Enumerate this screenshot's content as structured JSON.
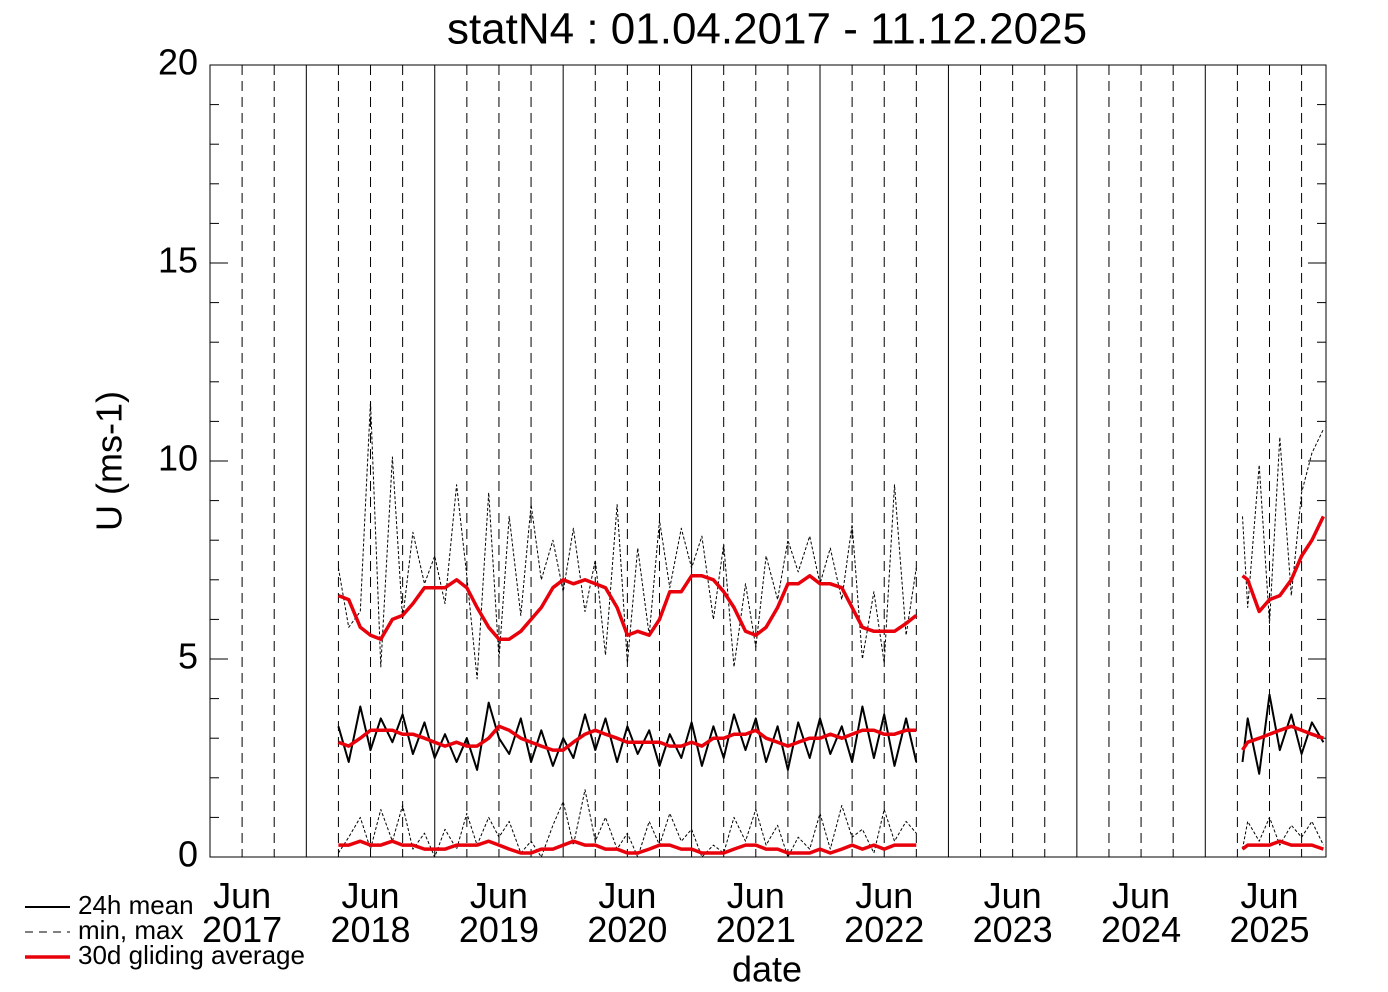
{
  "chart_data": {
    "type": "line",
    "title": "statN4 : 01.04.2017 - 11.12.2025",
    "xlabel": "date",
    "ylabel": "U (ms-1)",
    "xlim": [
      2017.25,
      2025.94
    ],
    "ylim": [
      0,
      20
    ],
    "yticks": [
      0,
      5,
      10,
      15,
      20
    ],
    "y_minor_ticks": [
      1,
      2,
      3,
      4,
      6,
      7,
      8,
      9,
      11,
      12,
      13,
      14,
      16,
      17,
      18,
      19
    ],
    "xticks": [
      {
        "value": 2017.5,
        "label": "Jun\n2017"
      },
      {
        "value": 2018.5,
        "label": "Jun\n2018"
      },
      {
        "value": 2019.5,
        "label": "Jun\n2019"
      },
      {
        "value": 2020.5,
        "label": "Jun\n2020"
      },
      {
        "value": 2021.5,
        "label": "Jun\n2021"
      },
      {
        "value": 2022.5,
        "label": "Jun\n2022"
      },
      {
        "value": 2023.5,
        "label": "Jun\n2023"
      },
      {
        "value": 2024.5,
        "label": "Jun\n2024"
      },
      {
        "value": 2025.5,
        "label": "Jun\n2025"
      }
    ],
    "xgrid_solid": [
      2018,
      2019,
      2020,
      2021,
      2022,
      2023,
      2024,
      2025
    ],
    "xgrid_dashed": [
      2017.75,
      2018.25,
      2018.75,
      2019.25,
      2019.75,
      2020.25,
      2020.75,
      2021.25,
      2021.75,
      2022.25,
      2022.75,
      2023.25,
      2023.75,
      2024.25,
      2024.75,
      2025.25,
      2025.75
    ],
    "x": [
      2018.25,
      2018.33,
      2018.42,
      2018.5,
      2018.58,
      2018.67,
      2018.75,
      2018.83,
      2018.92,
      2019.0,
      2019.08,
      2019.17,
      2019.25,
      2019.33,
      2019.42,
      2019.5,
      2019.58,
      2019.67,
      2019.75,
      2019.83,
      2019.92,
      2020.0,
      2020.08,
      2020.17,
      2020.25,
      2020.33,
      2020.42,
      2020.5,
      2020.58,
      2020.67,
      2020.75,
      2020.83,
      2020.92,
      2021.0,
      2021.08,
      2021.17,
      2021.25,
      2021.33,
      2021.42,
      2021.5,
      2021.58,
      2021.67,
      2021.75,
      2021.83,
      2021.92,
      2022.0,
      2022.08,
      2022.17,
      2022.25,
      2022.33,
      2022.42,
      2022.5,
      2022.58,
      2022.67,
      2022.75,
      2024.0,
      2025.29,
      2025.33,
      2025.42,
      2025.5,
      2025.58,
      2025.67,
      2025.75,
      2025.83,
      2025.92
    ],
    "series": [
      {
        "name": "min, max",
        "color": "#000000",
        "style": "dashed",
        "values": [
          [
            7.3,
            5.8,
            6.2,
            11.5,
            4.8,
            10.1,
            6.0,
            8.2,
            6.9,
            7.6,
            6.4,
            9.4,
            7.1,
            4.5,
            9.2,
            5.0,
            8.6,
            6.1,
            8.9,
            7.0,
            8.0,
            6.7,
            8.3,
            6.2,
            7.5,
            5.1,
            8.9,
            4.9,
            7.8,
            5.6,
            8.5,
            6.8,
            8.3,
            7.3,
            8.1,
            6.0,
            7.9,
            4.8,
            6.9,
            5.3,
            7.6,
            6.5,
            8.0,
            7.2,
            8.1,
            6.9,
            7.8,
            6.5,
            8.4,
            5.0,
            6.7,
            4.9,
            9.4,
            5.6,
            7.3,
            null,
            8.6,
            6.3,
            9.9,
            5.9,
            10.6,
            6.6,
            9.2,
            10.2,
            10.8
          ],
          [
            0.1,
            0.5,
            1.0,
            0.2,
            1.2,
            0.4,
            1.3,
            0.2,
            0.6,
            0.0,
            0.7,
            0.2,
            1.1,
            0.3,
            1.0,
            0.5,
            0.9,
            0.1,
            0.4,
            0.0,
            0.8,
            1.4,
            0.3,
            1.7,
            0.4,
            1.0,
            0.2,
            0.6,
            0.0,
            0.9,
            0.3,
            1.1,
            0.4,
            0.7,
            0.0,
            0.3,
            0.1,
            1.0,
            0.4,
            1.2,
            0.3,
            0.8,
            0.0,
            0.5,
            0.2,
            1.1,
            0.2,
            1.3,
            0.5,
            0.7,
            0.1,
            1.2,
            0.4,
            0.9,
            0.6,
            null,
            0.2,
            0.9,
            0.4,
            1.0,
            0.3,
            0.8,
            0.5,
            0.9,
            0.3
          ]
        ]
      },
      {
        "name": "24h mean",
        "color": "#000000",
        "style": "solid",
        "values": [
          [
            3.3,
            2.4,
            3.8,
            2.7,
            3.5,
            2.9,
            3.6,
            2.6,
            3.4,
            2.5,
            3.1,
            2.4,
            3.0,
            2.2,
            3.9,
            3.0,
            2.6,
            3.5,
            2.4,
            3.2,
            2.3,
            3.0,
            2.5,
            3.6,
            2.7,
            3.5,
            2.4,
            3.3,
            2.6,
            3.2,
            2.3,
            3.1,
            2.5,
            3.4,
            2.3,
            3.3,
            2.5,
            3.6,
            2.7,
            3.5,
            2.4,
            3.3,
            2.2,
            3.4,
            2.5,
            3.5,
            2.6,
            3.3,
            2.4,
            3.8,
            2.5,
            3.6,
            2.3,
            3.5,
            2.4,
            null,
            2.4,
            3.5,
            2.1,
            4.1,
            2.7,
            3.6,
            2.6,
            3.4,
            2.9
          ]
        ]
      },
      {
        "name": "30d gliding average",
        "color": "#e8000b",
        "style": "thick",
        "values": [
          [
            6.6,
            6.5,
            5.8,
            5.6,
            5.5,
            6.0,
            6.1,
            6.4,
            6.8,
            6.8,
            6.8,
            7.0,
            6.8,
            6.3,
            5.8,
            5.5,
            5.5,
            5.7,
            6.0,
            6.3,
            6.8,
            7.0,
            6.9,
            7.0,
            6.9,
            6.8,
            6.3,
            5.6,
            5.7,
            5.6,
            6.0,
            6.7,
            6.7,
            7.1,
            7.1,
            7.0,
            6.7,
            6.3,
            5.7,
            5.6,
            5.8,
            6.3,
            6.9,
            6.9,
            7.1,
            6.9,
            6.9,
            6.8,
            6.3,
            5.8,
            5.7,
            5.7,
            5.7,
            5.9,
            6.1,
            null,
            7.1,
            7.0,
            6.2,
            6.5,
            6.6,
            7.0,
            7.6,
            8.0,
            8.6
          ],
          [
            2.9,
            2.8,
            3.0,
            3.2,
            3.2,
            3.2,
            3.1,
            3.1,
            3.0,
            2.9,
            2.8,
            2.9,
            2.8,
            2.8,
            3.0,
            3.3,
            3.2,
            3.0,
            2.9,
            2.8,
            2.7,
            2.7,
            2.9,
            3.1,
            3.2,
            3.1,
            3.0,
            2.9,
            2.9,
            2.9,
            2.9,
            2.8,
            2.8,
            2.9,
            2.8,
            3.0,
            3.0,
            3.1,
            3.1,
            3.2,
            3.0,
            2.9,
            2.8,
            2.9,
            3.0,
            3.0,
            3.1,
            3.0,
            3.1,
            3.2,
            3.2,
            3.1,
            3.1,
            3.2,
            3.2,
            null,
            2.7,
            2.9,
            3.0,
            3.1,
            3.2,
            3.3,
            3.2,
            3.1,
            3.0
          ],
          [
            0.3,
            0.3,
            0.4,
            0.3,
            0.3,
            0.4,
            0.3,
            0.3,
            0.2,
            0.2,
            0.2,
            0.3,
            0.3,
            0.3,
            0.4,
            0.3,
            0.2,
            0.1,
            0.1,
            0.2,
            0.2,
            0.3,
            0.4,
            0.3,
            0.3,
            0.2,
            0.2,
            0.1,
            0.1,
            0.2,
            0.3,
            0.3,
            0.2,
            0.2,
            0.1,
            0.1,
            0.1,
            0.2,
            0.3,
            0.3,
            0.2,
            0.2,
            0.1,
            0.1,
            0.1,
            0.2,
            0.1,
            0.2,
            0.3,
            0.2,
            0.3,
            0.2,
            0.3,
            0.3,
            0.3,
            null,
            0.2,
            0.3,
            0.3,
            0.3,
            0.4,
            0.3,
            0.3,
            0.3,
            0.2
          ]
        ]
      }
    ],
    "legend_order": [
      1,
      0,
      2
    ]
  }
}
